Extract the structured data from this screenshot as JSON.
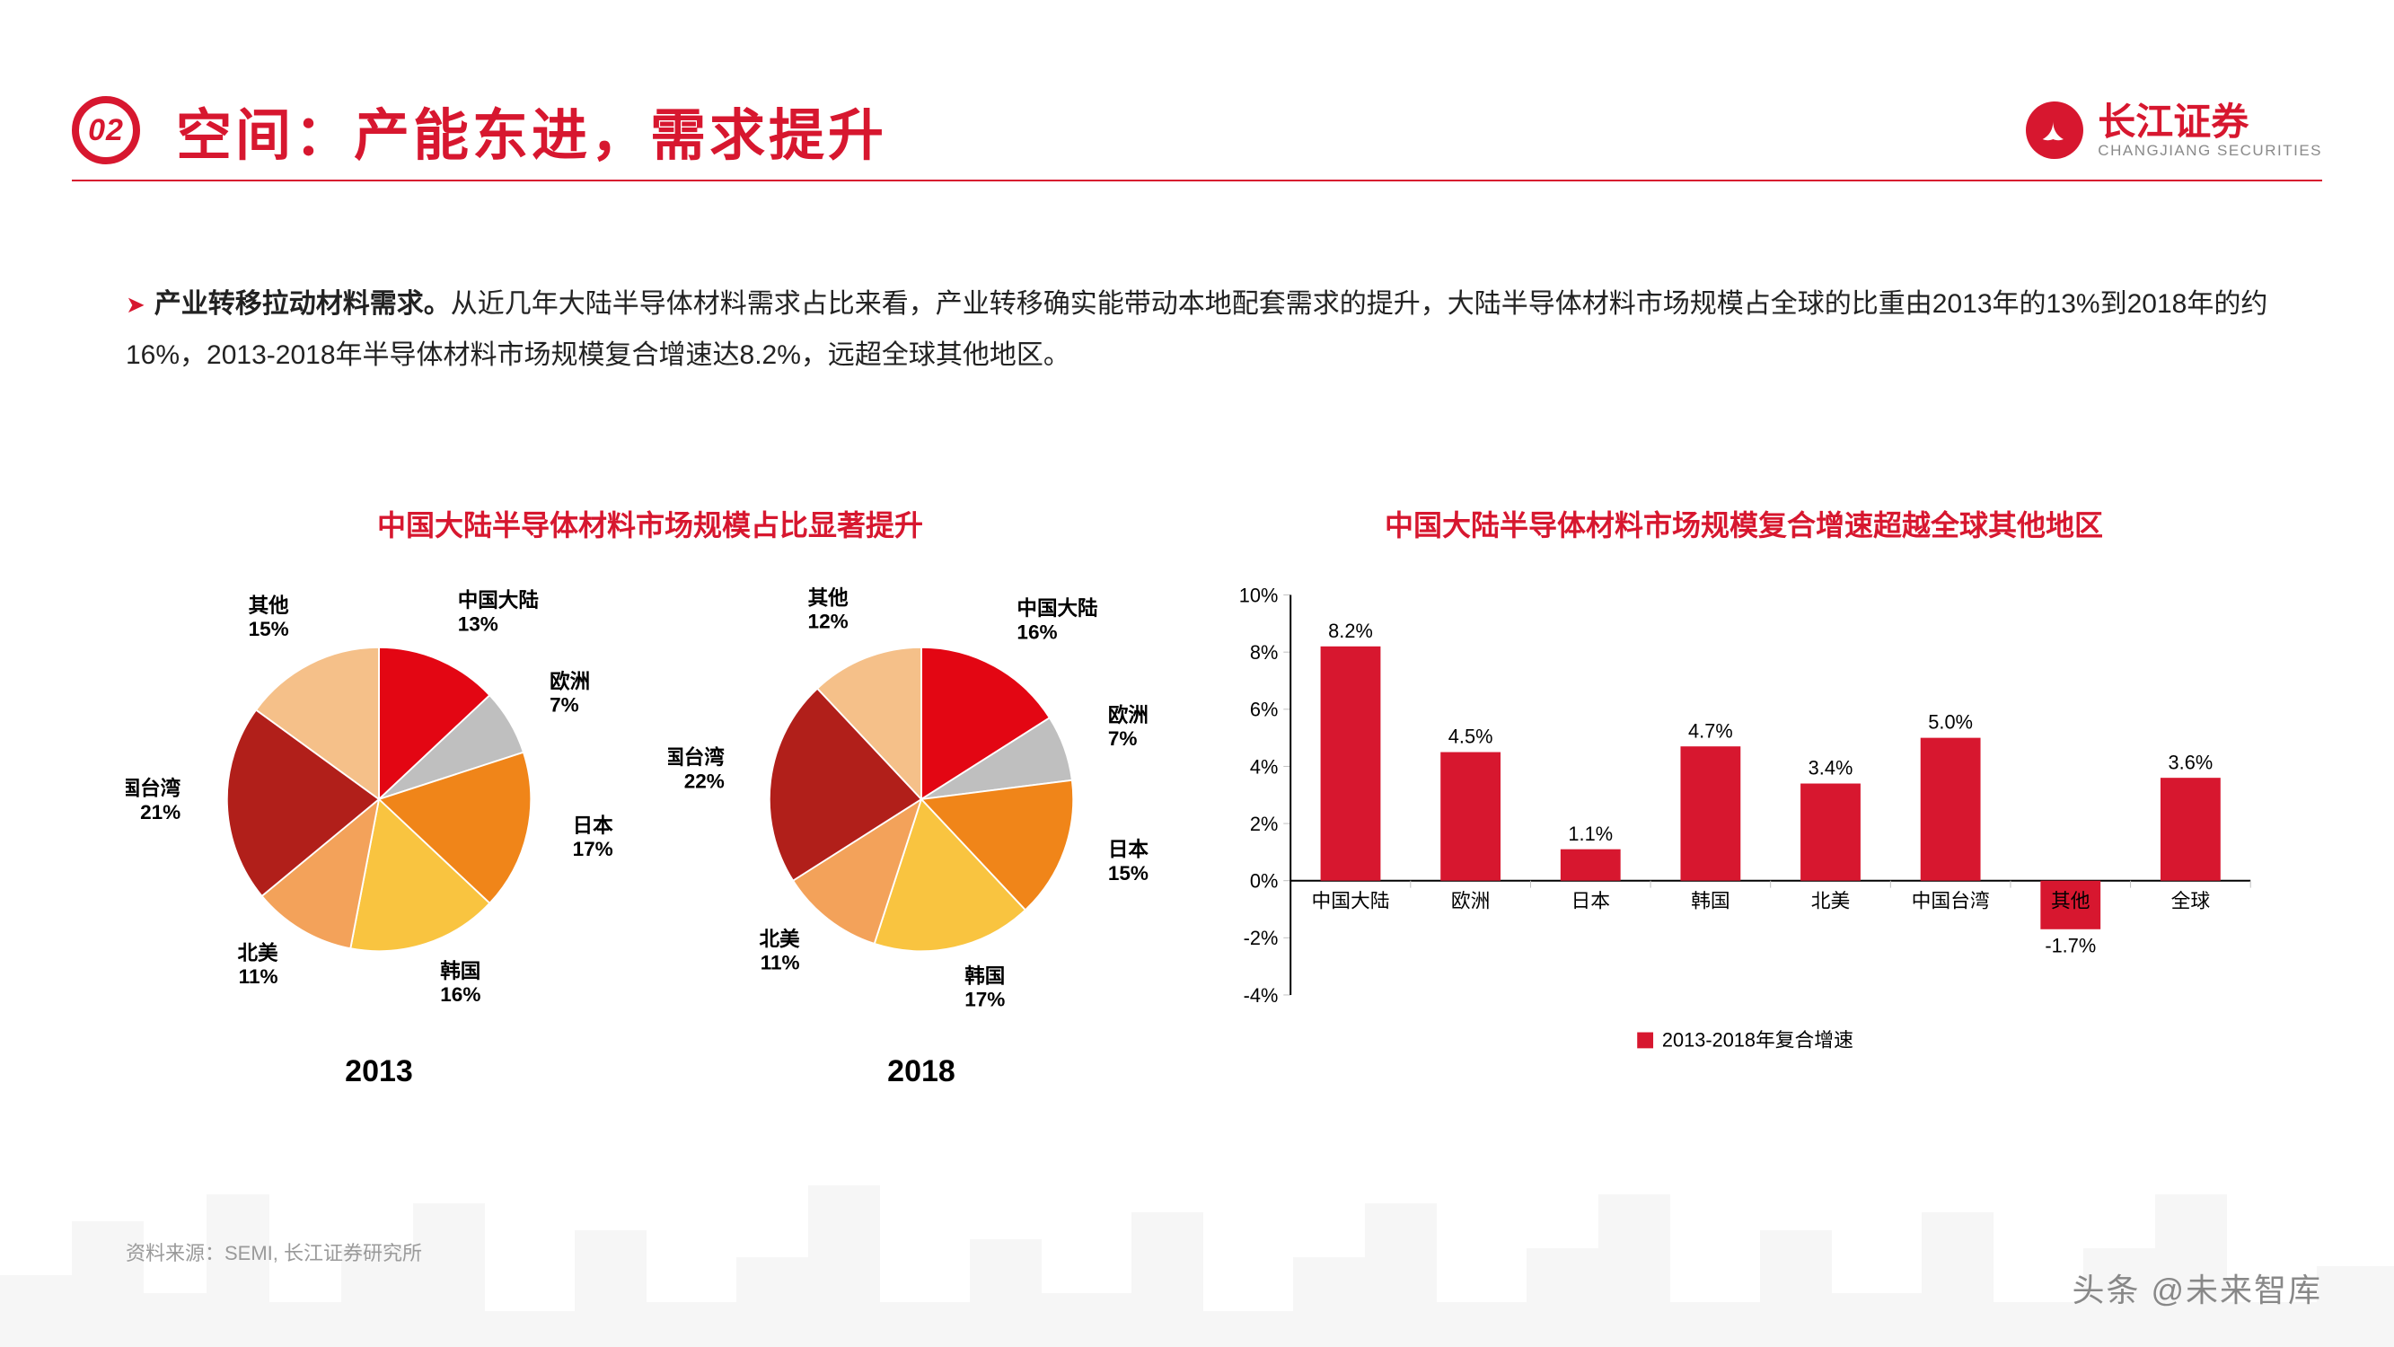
{
  "header": {
    "section_no": "02",
    "title": "空间：产能东进，需求提升",
    "brand_cn": "长江证券",
    "brand_en": "CHANGJIANG SECURITIES",
    "accent_color": "#d7172f"
  },
  "body": {
    "bullet_glyph": "➤",
    "lead_bold": "产业转移拉动材料需求。",
    "text": "从近几年大陆半导体材料需求占比来看，产业转移确实能带动本地配套需求的提升，大陆半导体材料市场规模占全球的比重由2013年的13%到2018年的约16%，2013-2018年半导体材料市场规模复合增速达8.2%，远超全球其他地区。"
  },
  "pie_panel": {
    "title": "中国大陆半导体材料市场规模占比显著提升",
    "palette": {
      "china_mainland": "#e30613",
      "europe": "#bfbfbf",
      "japan": "#f08519",
      "korea": "#f9c440",
      "north_america": "#f3a25a",
      "taiwan": "#b11f1a",
      "other": "#f5c089"
    },
    "label_fontsize": 24,
    "pies": [
      {
        "year": "2013",
        "slices": [
          {
            "key": "china_mainland",
            "label": "中国大陆",
            "value": 13
          },
          {
            "key": "europe",
            "label": "欧洲",
            "value": 7
          },
          {
            "key": "japan",
            "label": "日本",
            "value": 17
          },
          {
            "key": "korea",
            "label": "韩国",
            "value": 16
          },
          {
            "key": "north_america",
            "label": "北美",
            "value": 11
          },
          {
            "key": "taiwan",
            "label": "中国台湾",
            "value": 21
          },
          {
            "key": "other",
            "label": "其他",
            "value": 15
          }
        ]
      },
      {
        "year": "2018",
        "slices": [
          {
            "key": "china_mainland",
            "label": "中国大陆",
            "value": 16
          },
          {
            "key": "europe",
            "label": "欧洲",
            "value": 7
          },
          {
            "key": "japan",
            "label": "日本",
            "value": 15
          },
          {
            "key": "korea",
            "label": "韩国",
            "value": 17
          },
          {
            "key": "north_america",
            "label": "北美",
            "value": 11
          },
          {
            "key": "taiwan",
            "label": "中国台湾",
            "value": 22
          },
          {
            "key": "other",
            "label": "其他",
            "value": 12
          }
        ]
      }
    ]
  },
  "bar_panel": {
    "title": "中国大陆半导体材料市场规模复合增速超越全球其他地区",
    "type": "bar",
    "categories": [
      "中国大陆",
      "欧洲",
      "日本",
      "韩国",
      "北美",
      "中国台湾",
      "其他",
      "全球"
    ],
    "values": [
      8.2,
      4.5,
      1.1,
      4.7,
      3.4,
      5.0,
      -1.7,
      3.6
    ],
    "value_labels": [
      "8.2%",
      "4.5%",
      "1.1%",
      "4.7%",
      "3.4%",
      "5.0%",
      "-1.7%",
      "3.6%"
    ],
    "bar_color": "#d7172f",
    "ylim": [
      -4,
      10
    ],
    "ytick_step": 2,
    "ytick_format": "%",
    "axis_color": "#000000",
    "grid_color": "#bfbfbf",
    "tick_color": "#bfbfbf",
    "bar_width": 0.5,
    "label_fontsize": 22,
    "legend": "2013-2018年复合增速"
  },
  "footer": {
    "source": "资料来源：SEMI, 长江证券研究所",
    "watermark": "头条 @未来智库"
  }
}
